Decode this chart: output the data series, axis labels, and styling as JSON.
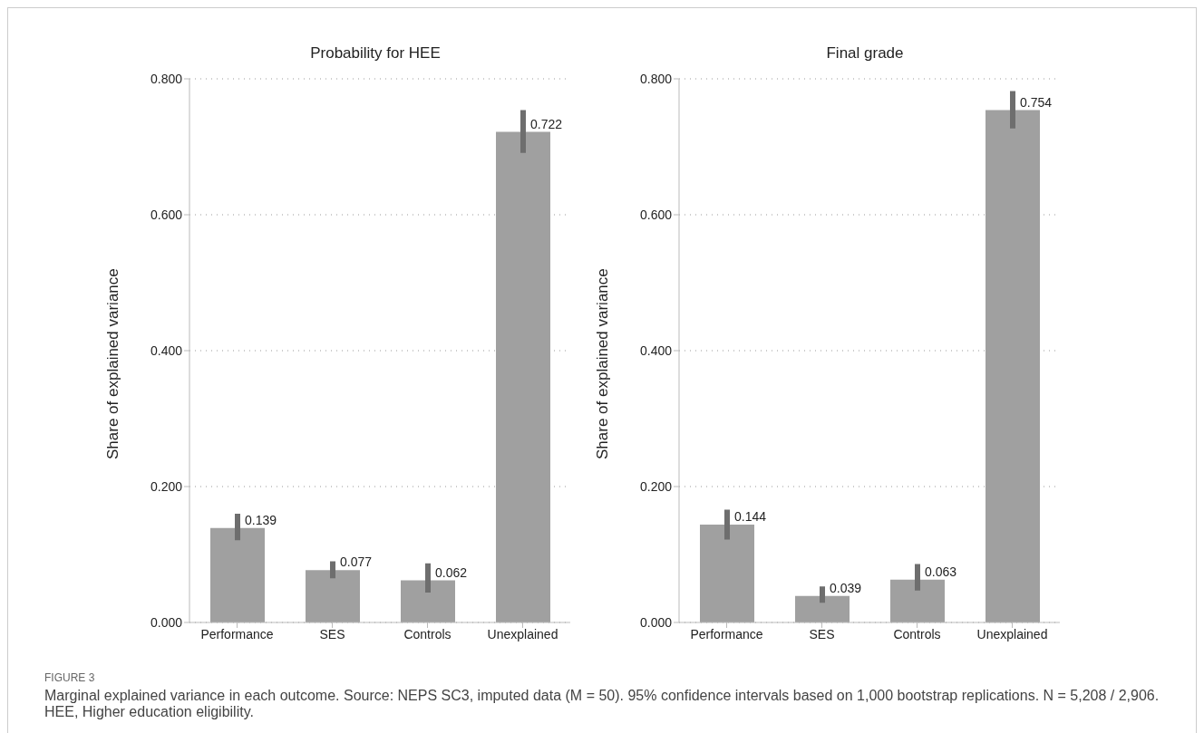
{
  "chart_data": [
    {
      "type": "bar",
      "title": "Probability for HEE",
      "ylabel": "Share of explained variance",
      "categories": [
        "Performance",
        "SES",
        "Controls",
        "Unexplained"
      ],
      "values": [
        0.139,
        0.077,
        0.062,
        0.722
      ],
      "color": "#a0a0a0",
      "errors": [
        [
          0.121,
          0.16
        ],
        [
          0.065,
          0.09
        ],
        [
          0.044,
          0.087
        ],
        [
          0.691,
          0.754
        ]
      ],
      "data_labels": true,
      "ylim": [
        0,
        0.8
      ],
      "yticks": [
        {
          "value": 0,
          "label": "0.000"
        },
        {
          "value": 0.2,
          "label": "0.200"
        },
        {
          "value": 0.4,
          "label": "0.400"
        },
        {
          "value": 0.6,
          "label": "0.600"
        },
        {
          "value": 0.8,
          "label": "0.800"
        }
      ],
      "grid": "y",
      "annotations": [
        "FIGURE 3",
        "Marginal explained variance in each outcome. Source: NEPS SC3, imputed data (M = 50). 95% confidence intervals based on 1,000 bootstrap replications. N = 5,208 / 2,906. HEE, Higher education eligibility."
      ]
    },
    {
      "type": "bar",
      "title": "Final grade",
      "ylabel": "Share of explained variance",
      "categories": [
        "Performance",
        "SES",
        "Controls",
        "Unexplained"
      ],
      "values": [
        0.144,
        0.039,
        0.063,
        0.754
      ],
      "color": "#a0a0a0",
      "errors": [
        [
          0.122,
          0.166
        ],
        [
          0.029,
          0.053
        ],
        [
          0.047,
          0.086
        ],
        [
          0.727,
          0.782
        ]
      ],
      "data_labels": true,
      "ylim": [
        0,
        0.8
      ],
      "yticks": [
        {
          "value": 0,
          "label": "0.000"
        },
        {
          "value": 0.2,
          "label": "0.200"
        },
        {
          "value": 0.4,
          "label": "0.400"
        },
        {
          "value": 0.6,
          "label": "0.600"
        },
        {
          "value": 0.8,
          "label": "0.800"
        }
      ],
      "grid": "y"
    }
  ]
}
